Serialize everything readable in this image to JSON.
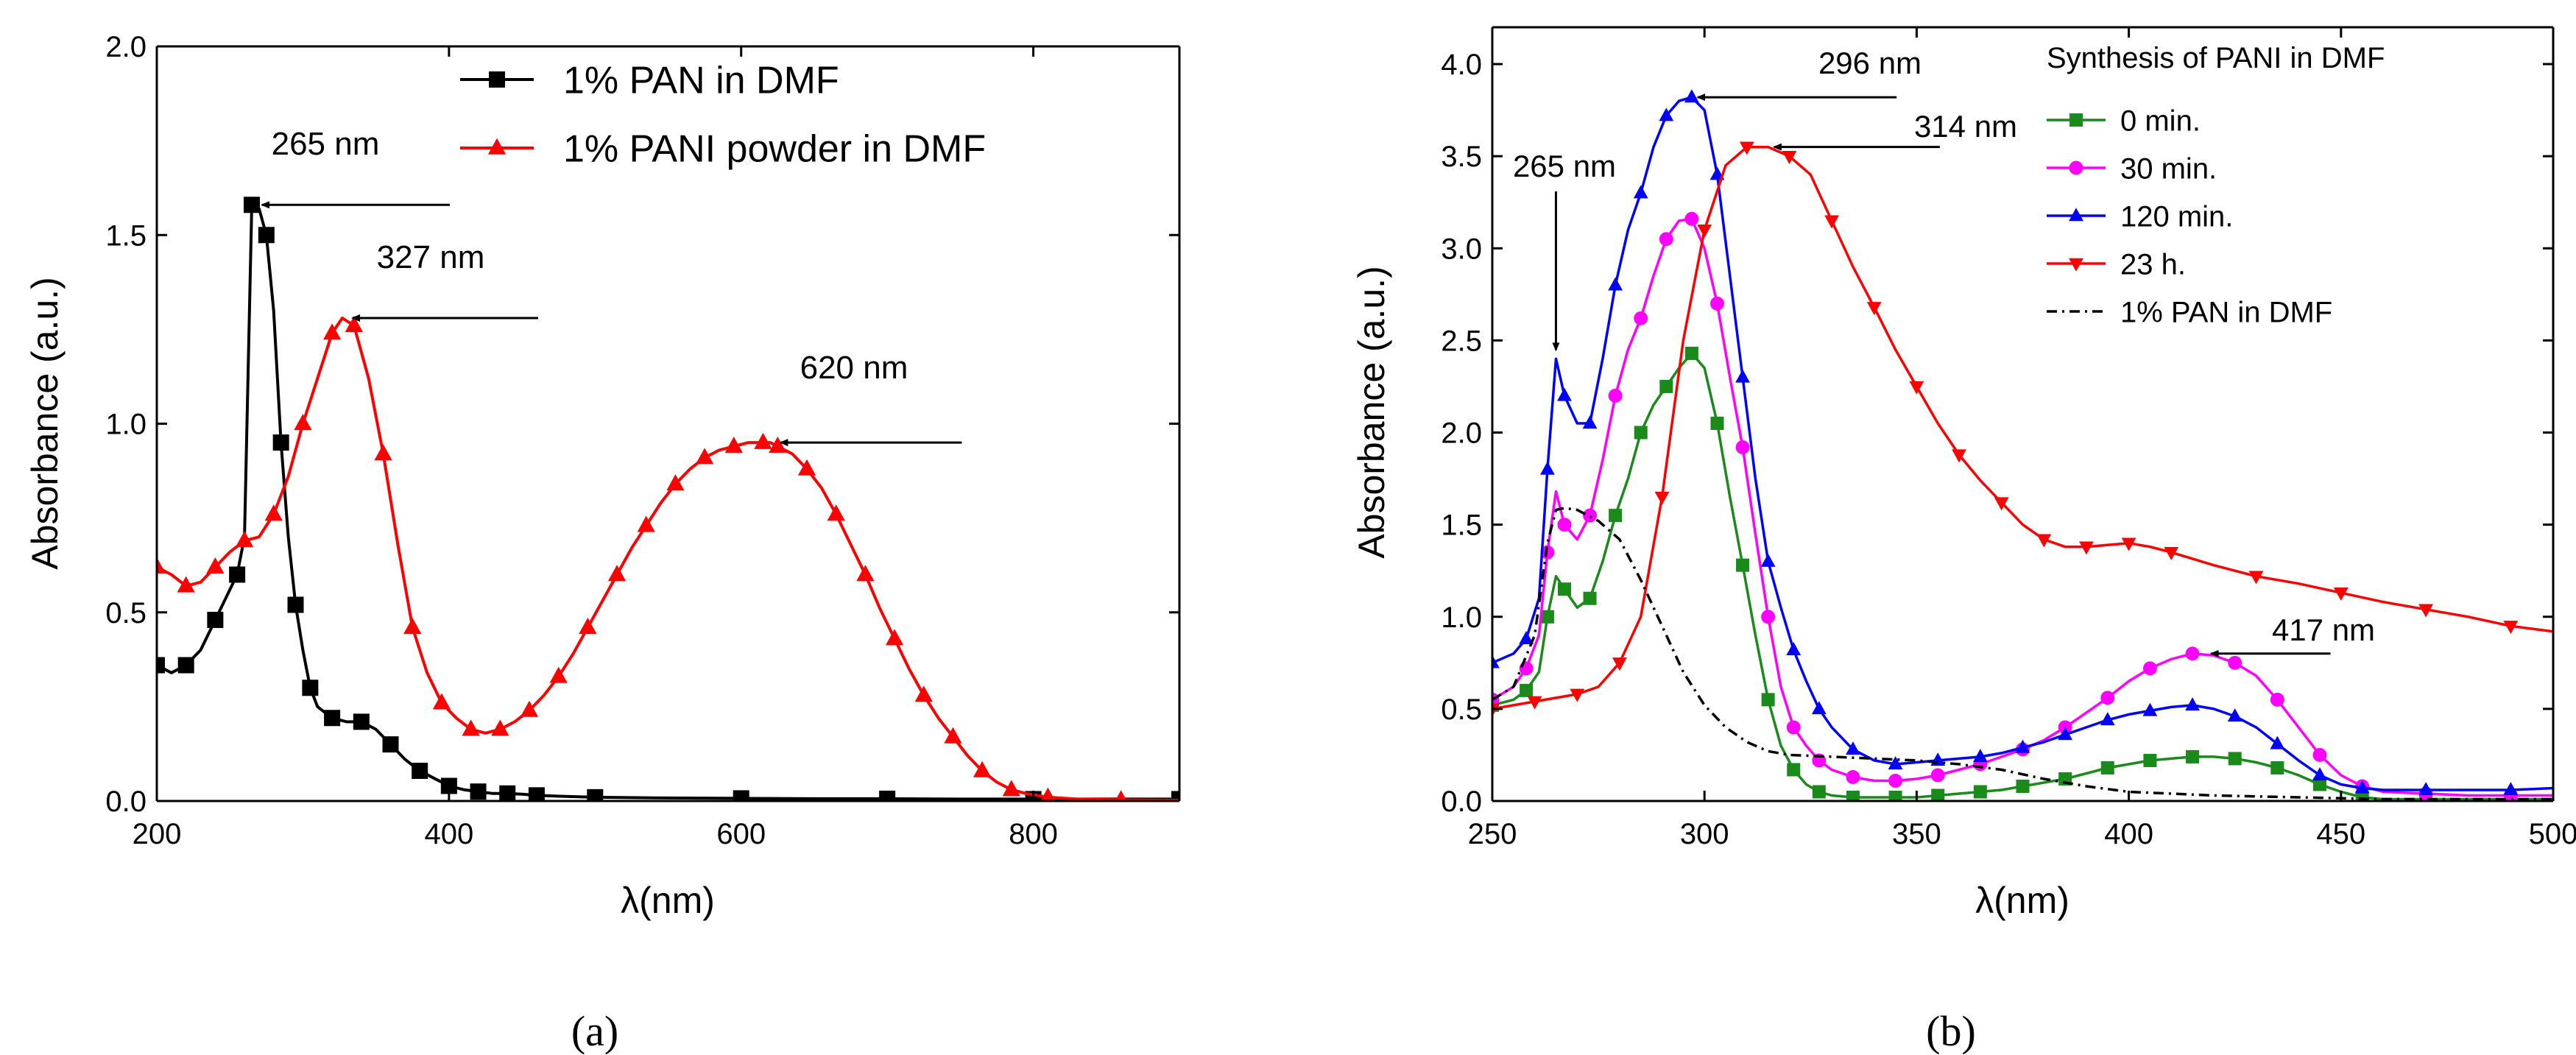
{
  "chart_data": [
    {
      "id": "a",
      "type": "line",
      "panel_label": "(a)",
      "title": "",
      "xlabel": "λ(nm)",
      "ylabel": "Absorbance (a.u.)",
      "xlim": [
        200,
        900
      ],
      "ylim": [
        0,
        2.0
      ],
      "xticks": [
        200,
        400,
        600,
        800
      ],
      "yticks": [
        0.0,
        0.5,
        1.0,
        1.5,
        2.0
      ],
      "ytick_labels": [
        "0.0",
        "0.5",
        "1.0",
        "1.5",
        "2.0"
      ],
      "grid": false,
      "legend_position": "top-right",
      "series": [
        {
          "name": "1% PAN in DMF",
          "color": "#000000",
          "marker": "square",
          "x": [
            200,
            210,
            220,
            230,
            240,
            250,
            255,
            260,
            265,
            270,
            275,
            280,
            285,
            290,
            295,
            300,
            305,
            310,
            320,
            330,
            340,
            350,
            360,
            370,
            380,
            390,
            400,
            410,
            420,
            430,
            440,
            450,
            460,
            480,
            500,
            550,
            600,
            650,
            700,
            750,
            800,
            850,
            900
          ],
          "y": [
            0.36,
            0.34,
            0.36,
            0.4,
            0.48,
            0.56,
            0.6,
            0.7,
            1.58,
            1.57,
            1.5,
            1.3,
            0.95,
            0.7,
            0.52,
            0.4,
            0.3,
            0.25,
            0.22,
            0.21,
            0.21,
            0.19,
            0.15,
            0.11,
            0.08,
            0.06,
            0.04,
            0.03,
            0.025,
            0.02,
            0.02,
            0.018,
            0.015,
            0.012,
            0.01,
            0.008,
            0.007,
            0.006,
            0.006,
            0.005,
            0.005,
            0.005,
            0.005
          ]
        },
        {
          "name": "1% PANI powder in DMF",
          "color": "#ff0000",
          "marker": "triangle-up",
          "x": [
            200,
            210,
            220,
            230,
            240,
            250,
            260,
            270,
            280,
            290,
            300,
            310,
            320,
            327,
            335,
            345,
            355,
            365,
            375,
            385,
            395,
            405,
            415,
            425,
            435,
            445,
            455,
            465,
            475,
            485,
            495,
            505,
            515,
            525,
            535,
            545,
            555,
            565,
            575,
            585,
            595,
            605,
            615,
            620,
            625,
            635,
            645,
            655,
            665,
            675,
            685,
            695,
            705,
            715,
            725,
            735,
            745,
            755,
            765,
            775,
            785,
            795,
            810,
            830,
            860,
            900
          ],
          "y": [
            0.62,
            0.6,
            0.57,
            0.58,
            0.62,
            0.66,
            0.69,
            0.7,
            0.76,
            0.86,
            1.0,
            1.12,
            1.24,
            1.28,
            1.26,
            1.12,
            0.92,
            0.68,
            0.46,
            0.34,
            0.26,
            0.22,
            0.19,
            0.18,
            0.19,
            0.21,
            0.24,
            0.28,
            0.33,
            0.39,
            0.46,
            0.53,
            0.6,
            0.67,
            0.73,
            0.79,
            0.84,
            0.88,
            0.91,
            0.93,
            0.94,
            0.95,
            0.95,
            0.95,
            0.94,
            0.92,
            0.88,
            0.83,
            0.76,
            0.68,
            0.6,
            0.51,
            0.43,
            0.35,
            0.28,
            0.22,
            0.17,
            0.12,
            0.08,
            0.05,
            0.03,
            0.02,
            0.01,
            0.005,
            0.003,
            0.002
          ]
        }
      ],
      "annotations": [
        {
          "text": "265 nm",
          "x": 265,
          "y": 1.58
        },
        {
          "text": "327 nm",
          "x": 327,
          "y": 1.28
        },
        {
          "text": "620 nm",
          "x": 620,
          "y": 0.95
        }
      ]
    },
    {
      "id": "b",
      "type": "line",
      "panel_label": "(b)",
      "title": "",
      "xlabel": "λ(nm)",
      "ylabel": "Absorbance (a.u.)",
      "xlim": [
        250,
        500
      ],
      "ylim": [
        0,
        4.2
      ],
      "xticks": [
        250,
        300,
        350,
        400,
        450,
        500
      ],
      "yticks": [
        0.0,
        0.5,
        1.0,
        1.5,
        2.0,
        2.5,
        3.0,
        3.5,
        4.0
      ],
      "ytick_labels": [
        "0.0",
        "0.5",
        "1.0",
        "1.5",
        "2.0",
        "2.5",
        "3.0",
        "3.5",
        "4.0"
      ],
      "grid": false,
      "legend_position": "top-right",
      "legend_title": "Synthesis of PANI in DMF",
      "series": [
        {
          "name": "0 min.",
          "color": "#1a8a1a",
          "marker": "square",
          "x": [
            250,
            255,
            258,
            261,
            263,
            265,
            267,
            270,
            273,
            276,
            279,
            282,
            285,
            288,
            291,
            294,
            297,
            300,
            303,
            306,
            309,
            312,
            315,
            318,
            321,
            324,
            327,
            330,
            335,
            340,
            345,
            350,
            355,
            360,
            365,
            370,
            375,
            380,
            385,
            390,
            395,
            400,
            405,
            410,
            415,
            420,
            425,
            430,
            435,
            440,
            445,
            450,
            455,
            460,
            470,
            480,
            490,
            500
          ],
          "y": [
            0.52,
            0.55,
            0.6,
            0.7,
            1.0,
            1.22,
            1.15,
            1.05,
            1.1,
            1.3,
            1.55,
            1.75,
            2.0,
            2.15,
            2.25,
            2.35,
            2.43,
            2.35,
            2.05,
            1.65,
            1.28,
            0.9,
            0.55,
            0.3,
            0.17,
            0.09,
            0.05,
            0.03,
            0.02,
            0.02,
            0.02,
            0.02,
            0.03,
            0.04,
            0.05,
            0.06,
            0.08,
            0.1,
            0.12,
            0.15,
            0.18,
            0.2,
            0.22,
            0.23,
            0.24,
            0.24,
            0.23,
            0.21,
            0.18,
            0.14,
            0.09,
            0.05,
            0.02,
            0.01,
            0.01,
            0.01,
            0.01,
            0.01
          ]
        },
        {
          "name": "30 min.",
          "color": "#ff00ff",
          "marker": "circle",
          "x": [
            250,
            255,
            258,
            261,
            263,
            265,
            267,
            270,
            273,
            276,
            279,
            282,
            285,
            288,
            291,
            294,
            297,
            300,
            303,
            306,
            309,
            312,
            315,
            318,
            321,
            324,
            327,
            330,
            335,
            340,
            345,
            350,
            355,
            360,
            365,
            370,
            375,
            380,
            385,
            390,
            395,
            400,
            405,
            410,
            415,
            420,
            425,
            430,
            435,
            440,
            445,
            450,
            455,
            460,
            470,
            480,
            490,
            500
          ],
          "y": [
            0.55,
            0.62,
            0.72,
            0.9,
            1.35,
            1.68,
            1.5,
            1.42,
            1.55,
            1.85,
            2.2,
            2.45,
            2.62,
            2.85,
            3.05,
            3.15,
            3.16,
            3.0,
            2.7,
            2.3,
            1.92,
            1.45,
            1.0,
            0.62,
            0.4,
            0.3,
            0.22,
            0.17,
            0.13,
            0.11,
            0.11,
            0.12,
            0.14,
            0.17,
            0.2,
            0.24,
            0.28,
            0.33,
            0.4,
            0.48,
            0.56,
            0.65,
            0.72,
            0.77,
            0.8,
            0.79,
            0.75,
            0.68,
            0.55,
            0.4,
            0.25,
            0.14,
            0.08,
            0.05,
            0.04,
            0.03,
            0.03,
            0.03
          ]
        },
        {
          "name": "120 min.",
          "color": "#0000ff",
          "marker": "triangle-up",
          "x": [
            250,
            255,
            258,
            261,
            263,
            265,
            267,
            270,
            273,
            276,
            279,
            282,
            285,
            288,
            291,
            294,
            297,
            300,
            303,
            306,
            309,
            312,
            315,
            318,
            321,
            324,
            327,
            330,
            335,
            340,
            345,
            350,
            355,
            360,
            365,
            370,
            375,
            380,
            385,
            390,
            395,
            400,
            405,
            410,
            415,
            420,
            425,
            430,
            435,
            440,
            445,
            450,
            455,
            460,
            470,
            480,
            490,
            500
          ],
          "y": [
            0.75,
            0.8,
            0.88,
            1.1,
            1.8,
            2.4,
            2.2,
            2.05,
            2.05,
            2.4,
            2.8,
            3.1,
            3.3,
            3.55,
            3.72,
            3.8,
            3.82,
            3.75,
            3.4,
            2.85,
            2.3,
            1.75,
            1.3,
            1.05,
            0.82,
            0.65,
            0.5,
            0.4,
            0.28,
            0.22,
            0.2,
            0.21,
            0.22,
            0.23,
            0.24,
            0.26,
            0.29,
            0.32,
            0.36,
            0.4,
            0.44,
            0.47,
            0.49,
            0.51,
            0.52,
            0.5,
            0.46,
            0.4,
            0.31,
            0.22,
            0.14,
            0.09,
            0.07,
            0.06,
            0.06,
            0.06,
            0.06,
            0.07
          ]
        },
        {
          "name": "23 h.",
          "color": "#ff0000",
          "marker": "triangle-down",
          "x": [
            250,
            255,
            260,
            265,
            270,
            275,
            280,
            285,
            290,
            295,
            300,
            305,
            310,
            315,
            320,
            325,
            330,
            335,
            340,
            345,
            350,
            355,
            360,
            365,
            370,
            375,
            380,
            385,
            390,
            395,
            400,
            405,
            410,
            420,
            430,
            440,
            450,
            460,
            470,
            480,
            490,
            500
          ],
          "y": [
            0.5,
            0.52,
            0.54,
            0.56,
            0.58,
            0.62,
            0.75,
            1.0,
            1.65,
            2.5,
            3.1,
            3.45,
            3.55,
            3.55,
            3.5,
            3.4,
            3.15,
            2.9,
            2.68,
            2.45,
            2.25,
            2.05,
            1.88,
            1.74,
            1.62,
            1.5,
            1.42,
            1.38,
            1.38,
            1.39,
            1.4,
            1.38,
            1.35,
            1.28,
            1.22,
            1.18,
            1.13,
            1.08,
            1.04,
            1.0,
            0.95,
            0.92
          ]
        },
        {
          "name": "1% PAN in DMF",
          "color": "#000000",
          "marker": "none",
          "line_style": "dash-dot",
          "x": [
            250,
            255,
            260,
            263,
            265,
            267,
            270,
            275,
            280,
            285,
            290,
            295,
            300,
            305,
            310,
            315,
            320,
            330,
            340,
            350,
            360,
            370,
            380,
            390,
            400,
            420,
            440,
            460,
            480,
            500
          ],
          "y": [
            0.55,
            0.62,
            0.9,
            1.4,
            1.58,
            1.59,
            1.58,
            1.52,
            1.42,
            1.2,
            0.95,
            0.7,
            0.52,
            0.4,
            0.32,
            0.27,
            0.25,
            0.24,
            0.23,
            0.22,
            0.2,
            0.17,
            0.12,
            0.08,
            0.05,
            0.03,
            0.02,
            0.01,
            0.01,
            0.01
          ]
        }
      ],
      "annotations": [
        {
          "text": "296 nm",
          "x": 296,
          "y": 3.82
        },
        {
          "text": "314 nm",
          "x": 314,
          "y": 3.55
        },
        {
          "text": "265 nm",
          "x": 265,
          "y": 2.4
        },
        {
          "text": "417 nm",
          "x": 417,
          "y": 0.8
        }
      ]
    }
  ]
}
